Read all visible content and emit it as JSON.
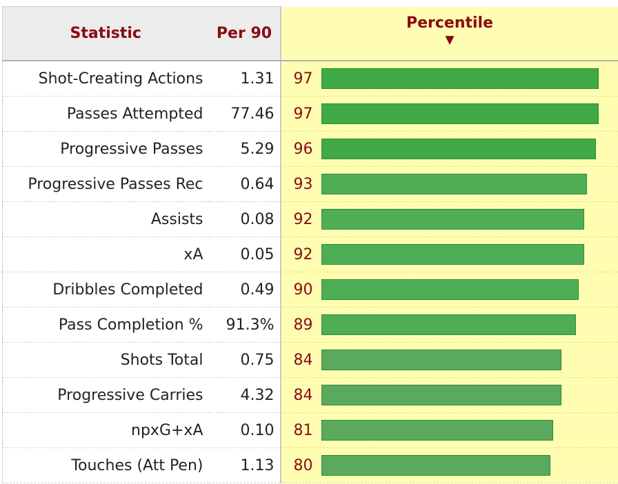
{
  "header": {
    "statistic_label": "Statistic",
    "per90_label": "Per 90",
    "percentile_label": "Percentile",
    "sort_indicator": "▼"
  },
  "colors": {
    "header_text": "#8b0a14",
    "percentile_column_bg": "#fffdb1",
    "bar_strong": "#3faa45",
    "bar_mid": "#4fad55",
    "bar_light": "#5aa95e"
  },
  "rows": [
    {
      "statistic": "Shot-Creating Actions",
      "per90": "1.31",
      "percentile": "97"
    },
    {
      "statistic": "Passes Attempted",
      "per90": "77.46",
      "percentile": "97"
    },
    {
      "statistic": "Progressive Passes",
      "per90": "5.29",
      "percentile": "96"
    },
    {
      "statistic": "Progressive Passes Rec",
      "per90": "0.64",
      "percentile": "93"
    },
    {
      "statistic": "Assists",
      "per90": "0.08",
      "percentile": "92"
    },
    {
      "statistic": "xA",
      "per90": "0.05",
      "percentile": "92"
    },
    {
      "statistic": "Dribbles Completed",
      "per90": "0.49",
      "percentile": "90"
    },
    {
      "statistic": "Pass Completion %",
      "per90": "91.3%",
      "percentile": "89"
    },
    {
      "statistic": "Shots Total",
      "per90": "0.75",
      "percentile": "84"
    },
    {
      "statistic": "Progressive Carries",
      "per90": "4.32",
      "percentile": "84"
    },
    {
      "statistic": "npxG+xA",
      "per90": "0.10",
      "percentile": "81"
    },
    {
      "statistic": "Touches (Att Pen)",
      "per90": "1.13",
      "percentile": "80"
    }
  ]
}
